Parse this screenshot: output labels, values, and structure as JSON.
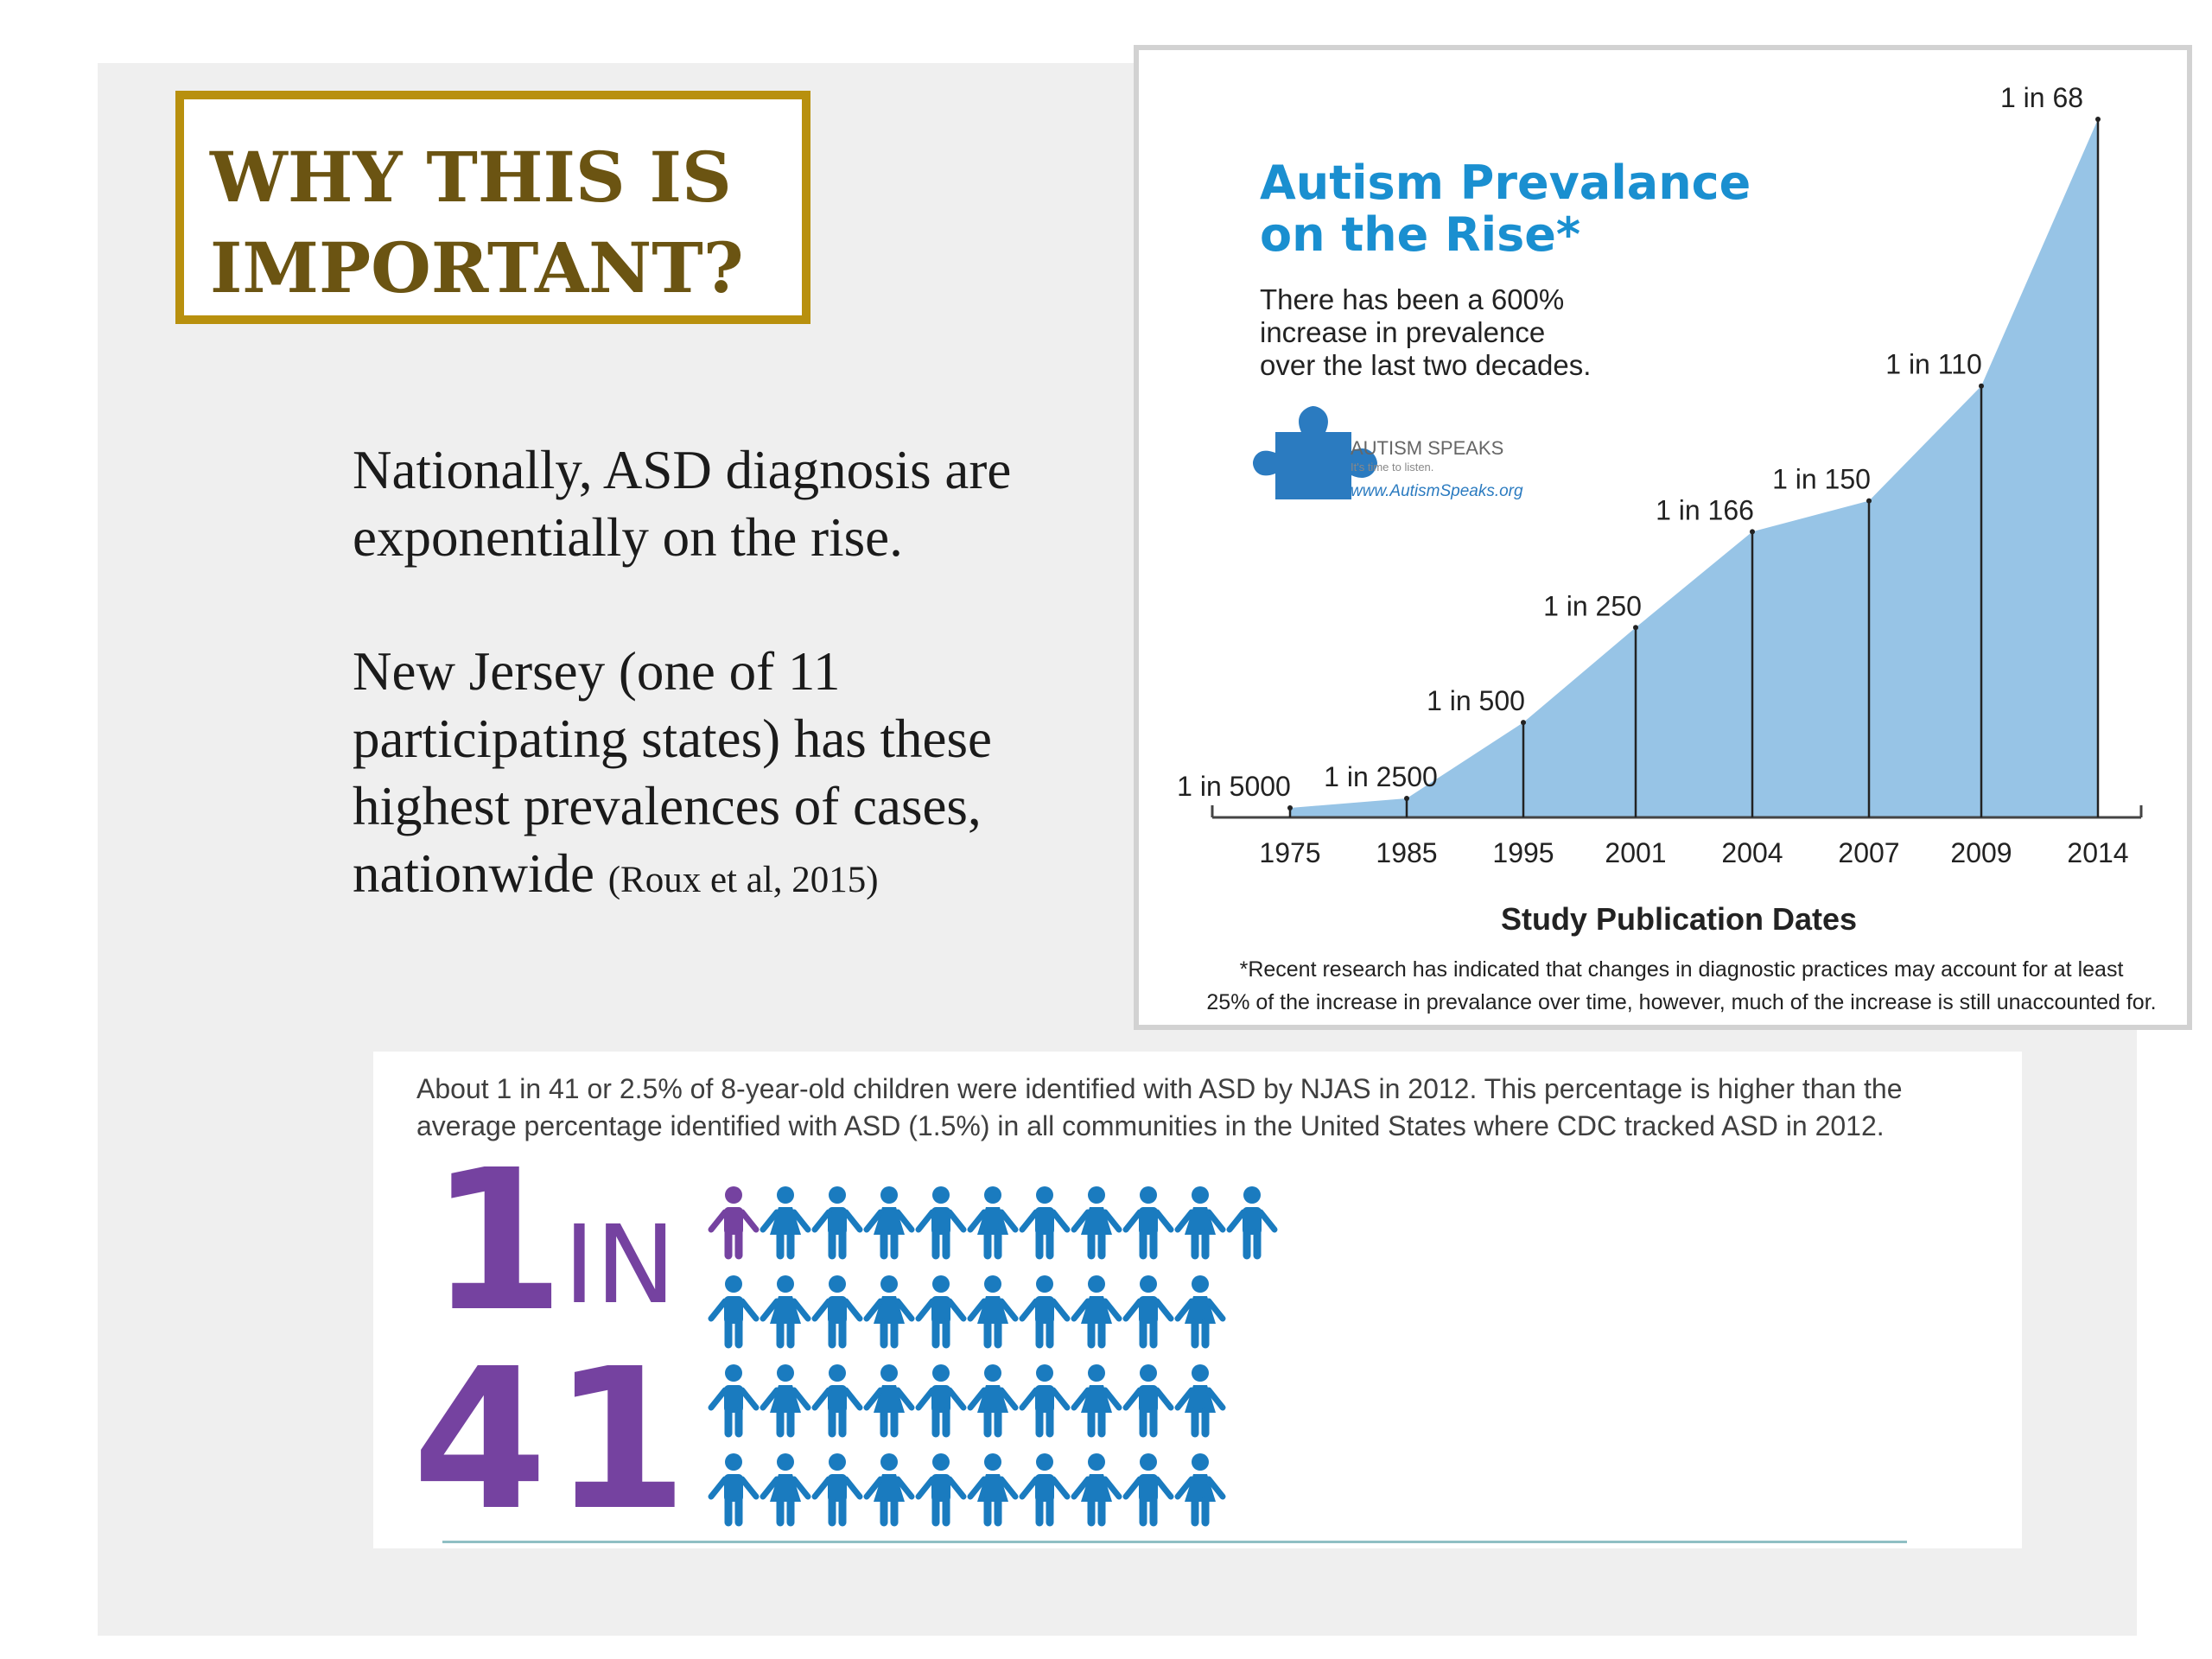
{
  "slide": {
    "title": "WHY THIS IS\nIMPORTANT?",
    "paragraph1": "Nationally, ASD diagnosis are exponentially on the rise.",
    "paragraph2": "New Jersey (one of 11 participating states) has these highest prevalences of cases, nationwide",
    "citation": "(Roux et al, 2015)"
  },
  "infographic": {
    "title_line1": "Autism Prevalance",
    "title_line2": "on the Rise*",
    "subtitle_lines": [
      "There has been a 600%",
      "increase in prevalence",
      "over the last two decades."
    ],
    "logo_name": "AUTISM SPEAKS",
    "logo_tagline": "It's time to listen.",
    "logo_url": "www.AutismSpeaks.org",
    "footnote_lines": [
      "*Recent research has indicated that changes in diagnostic practices may account for at least",
      "25% of the increase in prevalance over time, however, much of the increase is still unaccounted for."
    ],
    "colors": {
      "title": "#1a8fd0",
      "area": "#97c4e6",
      "logo": "#2b7bc0"
    }
  },
  "chart_data": {
    "type": "area",
    "title": "Autism Prevalance on the Rise*",
    "xlabel": "Study Publication Dates",
    "ylabel": "",
    "x_categories": [
      "1975",
      "1985",
      "1995",
      "2001",
      "2004",
      "2007",
      "2009",
      "2014"
    ],
    "data_labels": [
      "1 in 5000",
      "1 in 2500",
      "1 in 500",
      "1 in 250",
      "1 in 166",
      "1 in 150",
      "1 in 110",
      "1 in 68"
    ],
    "values_per_10000": [
      2,
      4,
      20,
      40,
      60.2,
      66.7,
      90.9,
      147.1
    ],
    "grid": false,
    "legend": "none"
  },
  "njas": {
    "text": "About 1 in 41 or 2.5% of 8-year-old children were identified with ASD by NJAS in 2012. This percentage is higher than the average percentage identified with ASD (1.5%) in all communities in the United States where CDC tracked ASD in 2012.",
    "big_number_1": "1",
    "big_in": "IN",
    "big_number_2": "41",
    "icon_total": 41,
    "icon_highlighted": 1,
    "colors": {
      "highlight": "#7542a0",
      "icon": "#1a7bbf"
    }
  }
}
